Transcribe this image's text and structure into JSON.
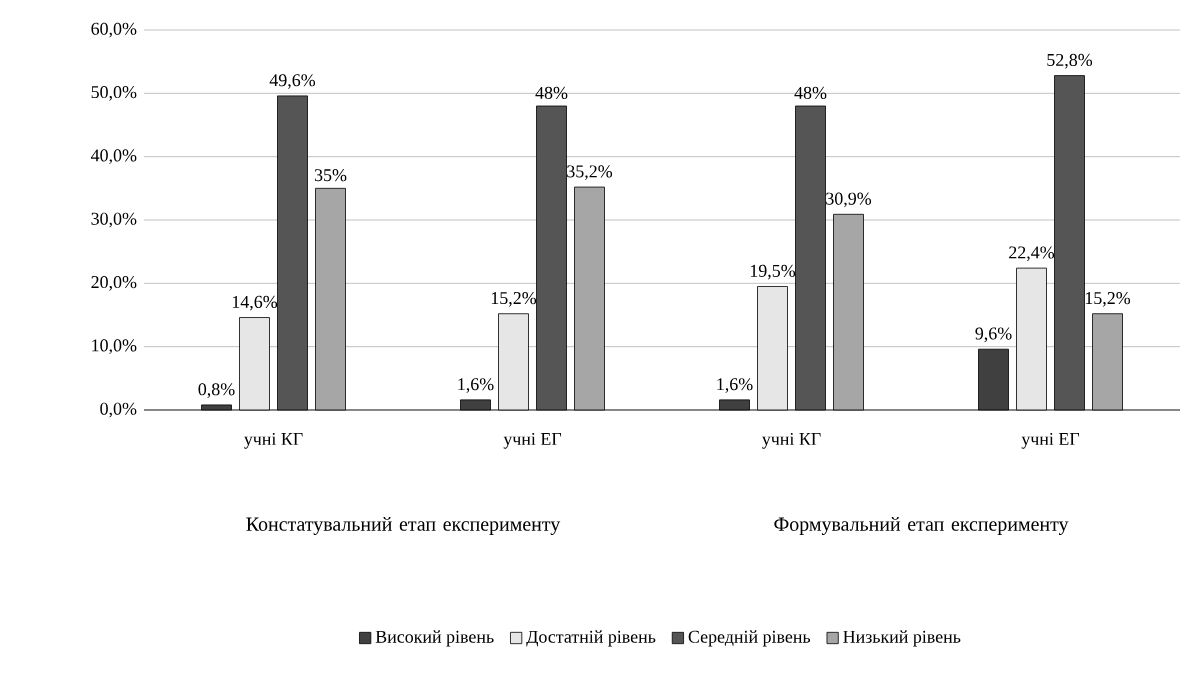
{
  "chart_data": {
    "type": "bar",
    "categories": [
      "учні КГ",
      "учні ЕГ",
      "учні КГ",
      "учні ЕГ"
    ],
    "annotations": [
      "Констатувальний етап експерименту",
      "Формувальний етап експерименту"
    ],
    "series": [
      {
        "name": "Високий рівень",
        "color": "#404040",
        "values": [
          0.8,
          1.6,
          1.6,
          9.6
        ],
        "value_labels": [
          "0,8%",
          "1,6%",
          "1,6%",
          "9,6%"
        ]
      },
      {
        "name": "Достатній рівень",
        "color": "#e6e6e6",
        "values": [
          14.6,
          15.2,
          19.5,
          22.4
        ],
        "value_labels": [
          "14,6%",
          "15,2%",
          "19,5%",
          "22,4%"
        ]
      },
      {
        "name": "Середній рівень",
        "color": "#555555",
        "values": [
          49.6,
          48,
          48,
          52.8
        ],
        "value_labels": [
          "49,6%",
          "48%",
          "48%",
          "52,8%"
        ]
      },
      {
        "name": "Низький рівень",
        "color": "#a6a6a6",
        "values": [
          35,
          35.2,
          30.9,
          15.2
        ],
        "value_labels": [
          "35%",
          "35,2%",
          "30,9%",
          "15,2%"
        ]
      }
    ],
    "ylim": [
      0,
      60
    ],
    "yticks": [
      {
        "value": 0,
        "label": "0,0%"
      },
      {
        "value": 10,
        "label": "10,0%"
      },
      {
        "value": 20,
        "label": "20,0%"
      },
      {
        "value": 30,
        "label": "30,0%"
      },
      {
        "value": 40,
        "label": "40,0%"
      },
      {
        "value": 50,
        "label": "50,0%"
      },
      {
        "value": 60,
        "label": "60,0%"
      }
    ],
    "grid": "y",
    "legend": "bottom"
  }
}
